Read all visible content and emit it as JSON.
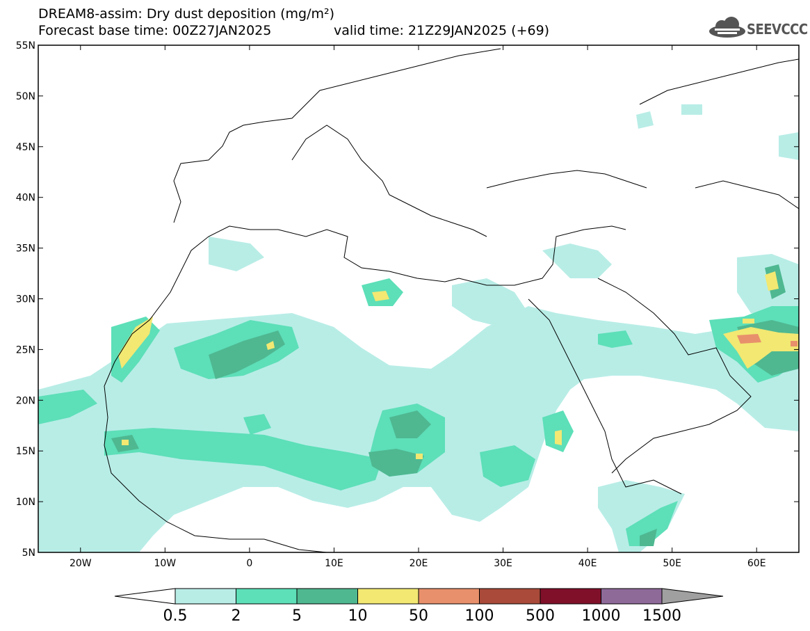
{
  "header": {
    "line1": "DREAM8-assim: Dry dust deposition (mg/m²)",
    "line2": "Forecast base time: 00Z27JAN2025",
    "valid": "valid time: 21Z29JAN2025 (+69)"
  },
  "logo": {
    "text": "SEEVCCC",
    "icon": "cloud-logo-icon"
  },
  "map": {
    "lon_range": [
      -25,
      65
    ],
    "lat_range": [
      5,
      55
    ],
    "lat_ticks": [
      "5N",
      "10N",
      "15N",
      "20N",
      "25N",
      "30N",
      "35N",
      "40N",
      "45N",
      "50N",
      "55N"
    ],
    "lon_ticks": [
      "20W",
      "10W",
      "0",
      "10E",
      "20E",
      "30E",
      "40E",
      "50E",
      "60E"
    ]
  },
  "colorbar": {
    "levels": [
      "0.5",
      "2",
      "5",
      "10",
      "50",
      "100",
      "500",
      "1000",
      "1500"
    ],
    "colors": [
      "#b8ede6",
      "#5ddfb8",
      "#4fb891",
      "#f2e872",
      "#e8906b",
      "#aa4a3a",
      "#80102a",
      "#8e6a99"
    ],
    "under_color": "#ffffff",
    "over_color": "#a0a0a0"
  }
}
